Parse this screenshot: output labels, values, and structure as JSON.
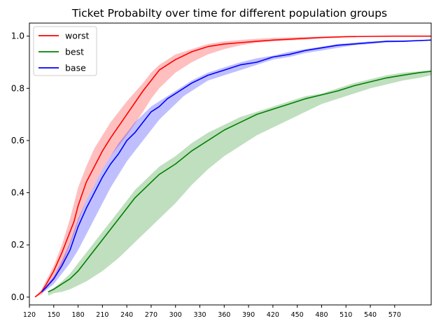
{
  "chart_data": {
    "type": "line",
    "title": "Ticket Probabilty over time for different population groups",
    "xlabel": "",
    "ylabel": "",
    "xlim": [
      120,
      615
    ],
    "ylim": [
      -0.03,
      1.05
    ],
    "xticks": [
      120,
      150,
      180,
      210,
      240,
      270,
      300,
      330,
      360,
      390,
      420,
      450,
      480,
      510,
      540,
      570
    ],
    "yticks": [
      0.0,
      0.2,
      0.4,
      0.6,
      0.8,
      1.0
    ],
    "xtick_labels": [
      "120",
      "150",
      "180",
      "210",
      "240",
      "270",
      "300",
      "330",
      "360",
      "390",
      "420",
      "450",
      "480",
      "510",
      "540",
      "570"
    ],
    "ytick_labels": [
      "0.0",
      "0.2",
      "0.4",
      "0.6",
      "0.8",
      "1.0"
    ],
    "grid": false,
    "legend_position": "top-left",
    "series": [
      {
        "name": "worst",
        "color": "#ff0000",
        "band_color": "#ff0000",
        "x": [
          127,
          135,
          140,
          150,
          160,
          170,
          175,
          180,
          190,
          200,
          210,
          220,
          240,
          260,
          270,
          280,
          300,
          320,
          340,
          360,
          380,
          400,
          420,
          450,
          480,
          510,
          540,
          570,
          615
        ],
        "y": [
          0.0,
          0.02,
          0.045,
          0.1,
          0.17,
          0.25,
          0.29,
          0.35,
          0.44,
          0.5,
          0.56,
          0.61,
          0.7,
          0.79,
          0.83,
          0.87,
          0.91,
          0.94,
          0.96,
          0.97,
          0.975,
          0.98,
          0.985,
          0.99,
          0.995,
          0.998,
          0.999,
          1.0,
          1.0
        ],
        "upper": [
          0.0,
          0.03,
          0.06,
          0.12,
          0.2,
          0.3,
          0.36,
          0.42,
          0.5,
          0.57,
          0.62,
          0.67,
          0.75,
          0.82,
          0.86,
          0.89,
          0.93,
          0.95,
          0.97,
          0.98,
          0.985,
          0.99,
          0.993,
          0.996,
          0.998,
          0.999,
          1.0,
          1.0,
          1.0
        ],
        "lower": [
          0.0,
          0.01,
          0.03,
          0.07,
          0.12,
          0.2,
          0.24,
          0.29,
          0.37,
          0.43,
          0.49,
          0.54,
          0.62,
          0.71,
          0.76,
          0.8,
          0.86,
          0.9,
          0.93,
          0.95,
          0.965,
          0.975,
          0.98,
          0.985,
          0.99,
          0.995,
          0.997,
          0.999,
          1.0
        ]
      },
      {
        "name": "best",
        "color": "#008000",
        "band_color": "#008000",
        "x": [
          143,
          150,
          160,
          170,
          180,
          190,
          200,
          210,
          220,
          230,
          240,
          250,
          260,
          270,
          280,
          300,
          320,
          340,
          360,
          380,
          400,
          420,
          440,
          460,
          480,
          500,
          520,
          540,
          560,
          580,
          600,
          615
        ],
        "y": [
          0.02,
          0.03,
          0.05,
          0.07,
          0.1,
          0.14,
          0.18,
          0.22,
          0.26,
          0.3,
          0.34,
          0.38,
          0.41,
          0.44,
          0.47,
          0.51,
          0.56,
          0.6,
          0.64,
          0.67,
          0.7,
          0.72,
          0.74,
          0.76,
          0.775,
          0.79,
          0.81,
          0.825,
          0.84,
          0.85,
          0.86,
          0.865
        ],
        "upper": [
          0.02,
          0.035,
          0.06,
          0.09,
          0.13,
          0.17,
          0.21,
          0.25,
          0.29,
          0.33,
          0.37,
          0.41,
          0.44,
          0.47,
          0.5,
          0.54,
          0.59,
          0.63,
          0.66,
          0.69,
          0.71,
          0.73,
          0.75,
          0.77,
          0.78,
          0.8,
          0.82,
          0.835,
          0.85,
          0.86,
          0.865,
          0.87
        ],
        "lower": [
          0.005,
          0.015,
          0.02,
          0.03,
          0.045,
          0.06,
          0.08,
          0.1,
          0.125,
          0.15,
          0.18,
          0.21,
          0.24,
          0.27,
          0.3,
          0.36,
          0.43,
          0.49,
          0.54,
          0.58,
          0.62,
          0.65,
          0.68,
          0.71,
          0.74,
          0.76,
          0.78,
          0.8,
          0.815,
          0.83,
          0.84,
          0.85
        ]
      },
      {
        "name": "base",
        "color": "#0000ff",
        "band_color": "#0000ff",
        "x": [
          135,
          140,
          150,
          160,
          170,
          180,
          190,
          200,
          210,
          220,
          230,
          240,
          250,
          260,
          270,
          280,
          290,
          300,
          310,
          320,
          340,
          360,
          380,
          400,
          420,
          440,
          460,
          480,
          500,
          520,
          540,
          560,
          580,
          600,
          615
        ],
        "y": [
          0.02,
          0.035,
          0.07,
          0.12,
          0.18,
          0.27,
          0.34,
          0.4,
          0.46,
          0.51,
          0.55,
          0.6,
          0.63,
          0.67,
          0.71,
          0.73,
          0.76,
          0.78,
          0.8,
          0.82,
          0.85,
          0.87,
          0.89,
          0.9,
          0.92,
          0.93,
          0.945,
          0.955,
          0.965,
          0.97,
          0.975,
          0.98,
          0.98,
          0.983,
          0.985
        ],
        "upper": [
          0.02,
          0.04,
          0.08,
          0.14,
          0.21,
          0.3,
          0.37,
          0.43,
          0.49,
          0.54,
          0.59,
          0.63,
          0.67,
          0.7,
          0.73,
          0.75,
          0.77,
          0.79,
          0.81,
          0.83,
          0.86,
          0.88,
          0.9,
          0.915,
          0.925,
          0.94,
          0.95,
          0.96,
          0.97,
          0.975,
          0.98,
          0.982,
          0.984,
          0.985,
          0.986
        ],
        "lower": [
          0.015,
          0.025,
          0.05,
          0.09,
          0.13,
          0.18,
          0.24,
          0.3,
          0.36,
          0.42,
          0.47,
          0.52,
          0.56,
          0.6,
          0.64,
          0.68,
          0.71,
          0.74,
          0.77,
          0.79,
          0.83,
          0.85,
          0.87,
          0.89,
          0.91,
          0.92,
          0.935,
          0.945,
          0.955,
          0.965,
          0.97,
          0.975,
          0.978,
          0.98,
          0.983
        ]
      }
    ]
  }
}
